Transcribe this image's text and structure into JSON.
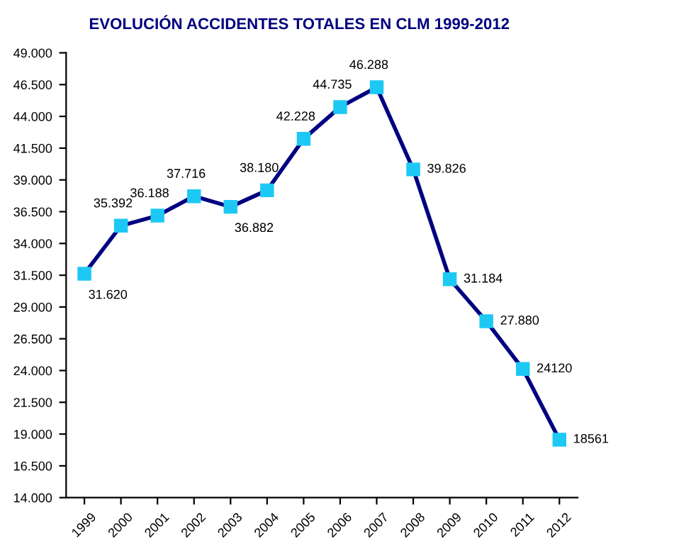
{
  "chart_data": {
    "type": "line",
    "title": "EVOLUCIÓN ACCIDENTES TOTALES EN CLM 1999-2012",
    "categories": [
      "1999",
      "2000",
      "2001",
      "2002",
      "2003",
      "2004",
      "2005",
      "2006",
      "2007",
      "2008",
      "2009",
      "2010",
      "2011",
      "2012"
    ],
    "series": [
      {
        "color": "#000080",
        "values": [
          31620,
          35392,
          36188,
          37716,
          36882,
          38180,
          42228,
          44735,
          46288,
          39826,
          31184,
          27880,
          24120,
          18561
        ],
        "value_labels": [
          "31.620",
          "35.392",
          "36.188",
          "37.716",
          "36.882",
          "38.180",
          "42.228",
          "44.735",
          "46.288",
          "39.826",
          "31.184",
          "27.880",
          "24120",
          "18561"
        ]
      }
    ],
    "marker": "square",
    "line_style": "solid",
    "grid": false,
    "legend": false,
    "ylim": [
      14000,
      49000
    ],
    "yticks": [
      {
        "value": 14000,
        "label": "14.000"
      },
      {
        "value": 16500,
        "label": "16.500"
      },
      {
        "value": 19000,
        "label": "19.000"
      },
      {
        "value": 21500,
        "label": "21.500"
      },
      {
        "value": 24000,
        "label": "24.000"
      },
      {
        "value": 26500,
        "label": "26.500"
      },
      {
        "value": 29000,
        "label": "29.000"
      },
      {
        "value": 31500,
        "label": "31.500"
      },
      {
        "value": 34000,
        "label": "34.000"
      },
      {
        "value": 36500,
        "label": "36.500"
      },
      {
        "value": 39000,
        "label": "39.000"
      },
      {
        "value": 41500,
        "label": "41.500"
      },
      {
        "value": 44000,
        "label": "44.000"
      },
      {
        "value": 46500,
        "label": "46.500"
      },
      {
        "value": 49000,
        "label": "49.000"
      }
    ]
  }
}
